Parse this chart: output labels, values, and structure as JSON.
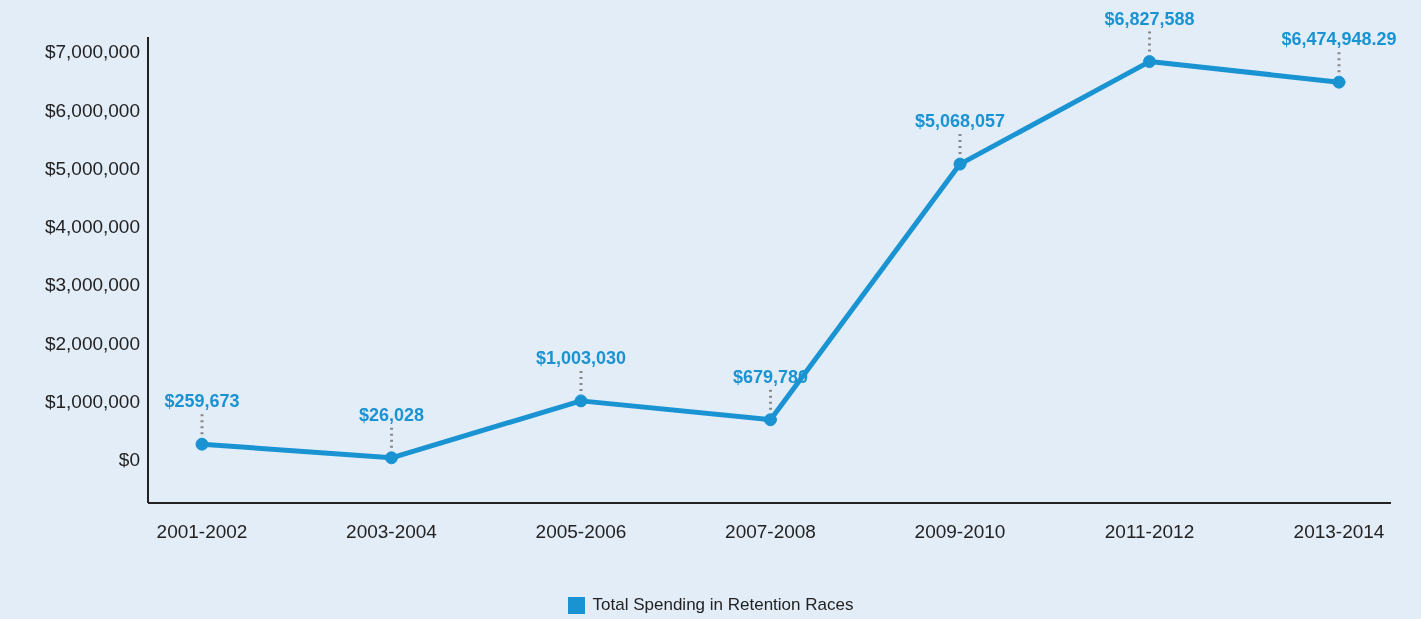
{
  "chart_data": {
    "type": "line",
    "categories": [
      "2001-2002",
      "2003-2004",
      "2005-2006",
      "2007-2008",
      "2009-2010",
      "2011-2012",
      "2013-2014"
    ],
    "series": [
      {
        "name": "Total Spending in Retention Races",
        "color": "#1a93d3",
        "values": [
          259673,
          26028,
          1003030,
          679780,
          5068057,
          6827588,
          6474948.29
        ],
        "value_labels": [
          "$259,673",
          "$26,028",
          "$1,003,030",
          "$679,780",
          "$5,068,057",
          "$6,827,588",
          "$6,474,948.29"
        ]
      }
    ],
    "ylim": [
      -750000,
      7250000
    ],
    "yticks": [
      {
        "value": 0,
        "label": "$0"
      },
      {
        "value": 1000000,
        "label": "$1,000,000"
      },
      {
        "value": 2000000,
        "label": "$2,000,000"
      },
      {
        "value": 3000000,
        "label": "$3,000,000"
      },
      {
        "value": 4000000,
        "label": "$4,000,000"
      },
      {
        "value": 5000000,
        "label": "$5,000,000"
      },
      {
        "value": 6000000,
        "label": "$6,000,000"
      },
      {
        "value": 7000000,
        "label": "$7,000,000"
      }
    ],
    "grid": false,
    "legend": "bottom",
    "marker": "circle",
    "line_style": "solid"
  }
}
